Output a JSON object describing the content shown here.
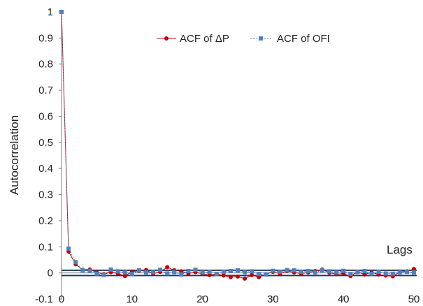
{
  "chart_data": {
    "type": "line",
    "title": "",
    "xlabel": "Lags",
    "ylabel": "Autocorrelation",
    "xlim": [
      0,
      50
    ],
    "ylim": [
      -0.1,
      1
    ],
    "xticks": [
      "0",
      "10",
      "20",
      "30",
      "40",
      "50"
    ],
    "yticks": [
      "-0.1",
      "0",
      "0.1",
      "0.2",
      "0.3",
      "0.4",
      "0.5",
      "0.6",
      "0.7",
      "0.8",
      "0.9",
      "1"
    ],
    "grid": false,
    "legend_position": "top-right",
    "confidence_bands": [
      0.01,
      -0.01
    ],
    "x": [
      0,
      1,
      2,
      3,
      4,
      5,
      6,
      7,
      8,
      9,
      10,
      11,
      12,
      13,
      14,
      15,
      16,
      17,
      18,
      19,
      20,
      21,
      22,
      23,
      24,
      25,
      26,
      27,
      28,
      29,
      30,
      31,
      32,
      33,
      34,
      35,
      36,
      37,
      38,
      39,
      40,
      41,
      42,
      43,
      44,
      45,
      46,
      47,
      48,
      49,
      50
    ],
    "series": [
      {
        "name": "ACF of ΔP",
        "color": "#c00000",
        "marker": "circle",
        "values": [
          1,
          0.082,
          0.033,
          0.012,
          0.013,
          0.002,
          -0.005,
          0.003,
          -0.002,
          -0.012,
          0.005,
          0.008,
          0.011,
          -0.003,
          0.004,
          0.022,
          0.01,
          0.006,
          -0.002,
          0.003,
          -0.004,
          -0.008,
          -0.004,
          -0.01,
          -0.016,
          -0.014,
          -0.022,
          -0.008,
          -0.016,
          -0.005,
          0.004,
          -0.003,
          0.008,
          0.002,
          -0.003,
          0.002,
          0.007,
          0.013,
          0.001,
          -0.005,
          -0.003,
          -0.012,
          0.004,
          -0.006,
          0.002,
          -0.006,
          -0.01,
          -0.013,
          0.004,
          0.006,
          0.015
        ]
      },
      {
        "name": "ACF of OFI",
        "color": "#4f81bd",
        "marker": "square",
        "values": [
          1,
          0.093,
          0.041,
          0.01,
          0.008,
          -0.003,
          -0.008,
          0.013,
          0.006,
          0.002,
          -0.004,
          0.01,
          0.002,
          0.003,
          0.012,
          -0.002,
          0.003,
          -0.006,
          0.007,
          0.012,
          0.002,
          0.004,
          -0.004,
          0.004,
          0.007,
          0.01,
          0.003,
          0.006,
          -0.004,
          -0.006,
          0.008,
          0.004,
          0.011,
          0.01,
          0.004,
          0.007,
          0.002,
          0.01,
          0.006,
          0.002,
          0.008,
          -0.004,
          0.003,
          0.007,
          -0.003,
          0.004,
          -0.002,
          -0.003,
          0.002,
          0.004,
          0.002
        ]
      }
    ]
  }
}
